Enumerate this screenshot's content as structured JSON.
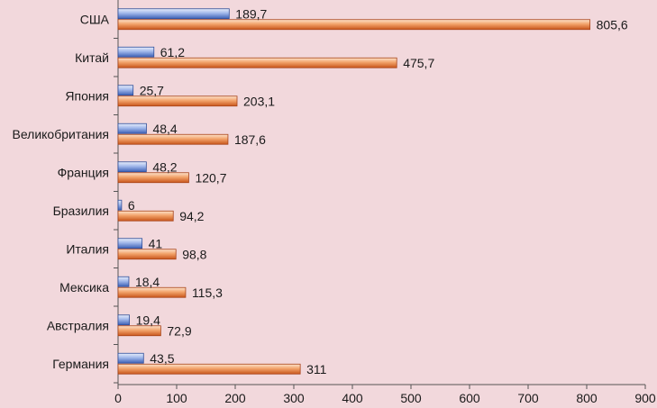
{
  "chart_data": {
    "type": "bar",
    "orientation": "horizontal",
    "categories": [
      "США",
      "Китай",
      "Япония",
      "Великобритания",
      "Франция",
      "Бразилия",
      "Италия",
      "Мексика",
      "Австралия",
      "Германия"
    ],
    "series": [
      {
        "values": [
          189.7,
          61.2,
          25.7,
          48.4,
          48.2,
          6,
          41,
          18.4,
          19.4,
          43.5
        ],
        "value_labels": [
          "189,7",
          "61,2",
          "25,7",
          "48,4",
          "48,2",
          "6",
          "41",
          "18,4",
          "19,4",
          "43,5"
        ],
        "color": "#5b7fd1"
      },
      {
        "values": [
          805.6,
          475.7,
          203.1,
          187.6,
          120.7,
          94.2,
          98.8,
          115.3,
          72.9,
          311
        ],
        "value_labels": [
          "805,6",
          "475,7",
          "203,1",
          "187,6",
          "120,7",
          "94,2",
          "98,8",
          "115,3",
          "72,9",
          "311"
        ],
        "color": "#e07a38"
      }
    ],
    "xlim": [
      0,
      900
    ],
    "x_ticks": [
      0,
      100,
      200,
      300,
      400,
      500,
      600,
      700,
      800,
      900
    ],
    "grid": false,
    "legend": "none",
    "title": "",
    "xlabel": "",
    "ylabel": ""
  }
}
